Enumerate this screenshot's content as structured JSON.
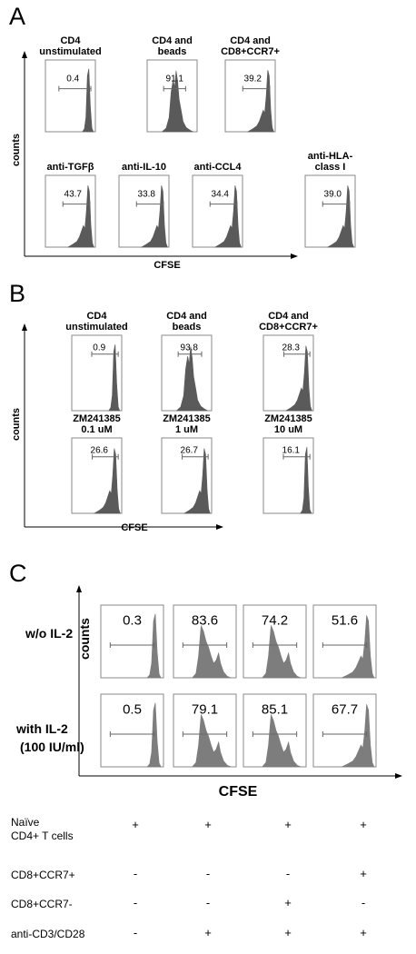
{
  "panel_a": {
    "letter": "A",
    "y_axis_label": "counts",
    "x_axis_label": "CFSE",
    "plots": [
      {
        "title": "CD4\nunstimulated",
        "value": "0.4",
        "shape": "single"
      },
      {
        "title": "CD4 and\nbeads",
        "value": "91.1",
        "shape": "broad"
      },
      {
        "title": "CD4 and\nCD8+CCR7+",
        "value": "39.2",
        "shape": "tail"
      },
      {
        "title": "anti-TGFβ",
        "value": "43.7",
        "shape": "tail"
      },
      {
        "title": "anti-IL-10",
        "value": "33.8",
        "shape": "tail"
      },
      {
        "title": "anti-CCL4",
        "value": "34.4",
        "shape": "tail"
      },
      {
        "title": "anti-HLA-\nclass I",
        "value": "39.0",
        "shape": "tail"
      }
    ]
  },
  "panel_b": {
    "letter": "B",
    "y_axis_label": "counts",
    "x_axis_label": "CFSE",
    "plots": [
      {
        "title": "CD4\nunstimulated",
        "value": "0.9",
        "shape": "single"
      },
      {
        "title": "CD4 and\nbeads",
        "value": "93.8",
        "shape": "broad"
      },
      {
        "title": "CD4 and\nCD8+CCR7+",
        "value": "28.3",
        "shape": "tail"
      },
      {
        "title": "ZM241385\n0.1 uM",
        "value": "26.6",
        "shape": "tail"
      },
      {
        "title": "ZM241385\n1 uM",
        "value": "26.7",
        "shape": "tail"
      },
      {
        "title": "ZM241385\n10 uM",
        "value": "16.1",
        "shape": "single"
      }
    ]
  },
  "panel_c": {
    "letter": "C",
    "y_axis_label": "counts",
    "x_axis_label": "CFSE",
    "row_labels": [
      "w/o IL-2",
      "with IL-2\n(100 IU/ml)"
    ],
    "rows": [
      [
        "0.3",
        "83.6",
        "74.2",
        "51.6"
      ],
      [
        "0.5",
        "79.1",
        "85.1",
        "67.7"
      ]
    ],
    "shapes": [
      "single",
      "multi",
      "multi",
      "tail"
    ],
    "conditions": [
      {
        "label": "Naïve\nCD4+ T cells",
        "marks": [
          "+",
          "+",
          "+",
          "+"
        ]
      },
      {
        "label": "CD8+CCR7+",
        "marks": [
          "-",
          "-",
          "-",
          "+"
        ]
      },
      {
        "label": "CD8+CCR7-",
        "marks": [
          "-",
          "-",
          "+",
          "-"
        ]
      },
      {
        "label": "anti-CD3/CD28",
        "marks": [
          "-",
          "+",
          "+",
          "+"
        ]
      }
    ]
  },
  "colors": {
    "histogram_fill": "#5a5a5a",
    "histogram_fill_c": "#7d7d7d",
    "frame": "#8a8a8a",
    "axis": "#000000"
  }
}
